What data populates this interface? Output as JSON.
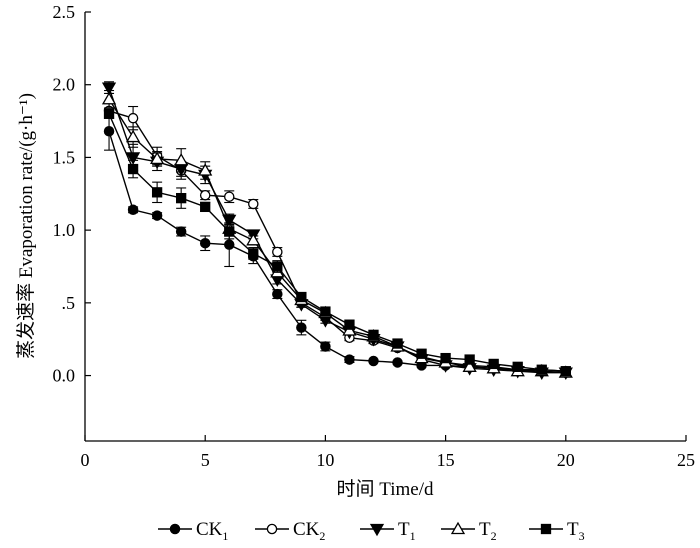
{
  "chart_data": {
    "type": "line",
    "xlabel": "时间 Time/d",
    "ylabel": "蒸发速率 Evaporation rate/(g·h⁻¹)",
    "xlim": [
      0,
      25
    ],
    "ylim": [
      -0.45,
      2.5
    ],
    "x_ticks": [
      0,
      5,
      10,
      15,
      20,
      25
    ],
    "x_tick_labels": [
      "0",
      "5",
      "10",
      "15",
      "20",
      "25"
    ],
    "y_ticks": [
      0.0,
      0.5,
      1.0,
      1.5,
      2.0,
      2.5
    ],
    "y_tick_labels": [
      "0.0",
      ".5",
      "1.0",
      "1.5",
      "2.0",
      "2.5"
    ],
    "grid": false,
    "legend_position": "bottom",
    "x": [
      1,
      2,
      3,
      4,
      5,
      6,
      7,
      8,
      9,
      10,
      11,
      12,
      13,
      14,
      15,
      16,
      17,
      18,
      19,
      20
    ],
    "series": [
      {
        "name": "CK",
        "subscript": "1",
        "marker": "circle-filled",
        "values": [
          1.68,
          1.14,
          1.1,
          0.99,
          0.91,
          0.9,
          0.82,
          0.56,
          0.33,
          0.2,
          0.11,
          0.1,
          0.09,
          0.07,
          0.07,
          0.06,
          0.05,
          0.04,
          0.04,
          0.03
        ],
        "errors": [
          0.13,
          0.02,
          0.02,
          0.03,
          0.05,
          0.15,
          0.05,
          0.03,
          0.05,
          0.03,
          0.02,
          0.01,
          0.01,
          0.01,
          0.01,
          0.01,
          0.01,
          0.01,
          0.01,
          0.01
        ]
      },
      {
        "name": "CK",
        "subscript": "2",
        "marker": "circle-open",
        "values": [
          1.82,
          1.77,
          1.51,
          1.41,
          1.24,
          1.23,
          1.18,
          0.85,
          0.5,
          0.4,
          0.26,
          0.24,
          0.19,
          0.13,
          0.09,
          0.07,
          0.06,
          0.04,
          0.03,
          0.02
        ],
        "errors": [
          0.05,
          0.08,
          0.06,
          0.06,
          0.03,
          0.04,
          0.03,
          0.03,
          0.03,
          0.02,
          0.02,
          0.02,
          0.02,
          0.02,
          0.02,
          0.01,
          0.01,
          0.01,
          0.01,
          0.01
        ]
      },
      {
        "name": "T",
        "subscript": "1",
        "marker": "triangle-down-filled",
        "values": [
          1.98,
          1.5,
          1.47,
          1.42,
          1.38,
          1.07,
          0.97,
          0.66,
          0.49,
          0.38,
          0.3,
          0.25,
          0.2,
          0.11,
          0.07,
          0.05,
          0.04,
          0.03,
          0.02,
          0.02
        ],
        "errors": [
          0.04,
          0.09,
          0.06,
          0.05,
          0.06,
          0.04,
          0.03,
          0.03,
          0.02,
          0.02,
          0.02,
          0.02,
          0.01,
          0.01,
          0.01,
          0.01,
          0.01,
          0.01,
          0.01,
          0.01
        ]
      },
      {
        "name": "T",
        "subscript": "2",
        "marker": "triangle-up-open",
        "values": [
          1.9,
          1.64,
          1.49,
          1.48,
          1.41,
          1.01,
          0.93,
          0.71,
          0.52,
          0.43,
          0.31,
          0.27,
          0.2,
          0.12,
          0.09,
          0.06,
          0.05,
          0.03,
          0.03,
          0.02
        ],
        "errors": [
          0.06,
          0.07,
          0.05,
          0.08,
          0.06,
          0.03,
          0.03,
          0.03,
          0.02,
          0.02,
          0.02,
          0.02,
          0.01,
          0.01,
          0.01,
          0.01,
          0.01,
          0.01,
          0.01,
          0.01
        ]
      },
      {
        "name": "T",
        "subscript": "3",
        "marker": "square-filled",
        "values": [
          1.8,
          1.42,
          1.26,
          1.22,
          1.16,
          0.99,
          0.84,
          0.75,
          0.54,
          0.44,
          0.35,
          0.28,
          0.22,
          0.15,
          0.12,
          0.11,
          0.08,
          0.06,
          0.04,
          0.03
        ],
        "errors": [
          0.03,
          0.06,
          0.07,
          0.07,
          0.03,
          0.05,
          0.04,
          0.04,
          0.02,
          0.02,
          0.02,
          0.02,
          0.02,
          0.01,
          0.01,
          0.01,
          0.01,
          0.01,
          0.01,
          0.01
        ]
      }
    ]
  }
}
